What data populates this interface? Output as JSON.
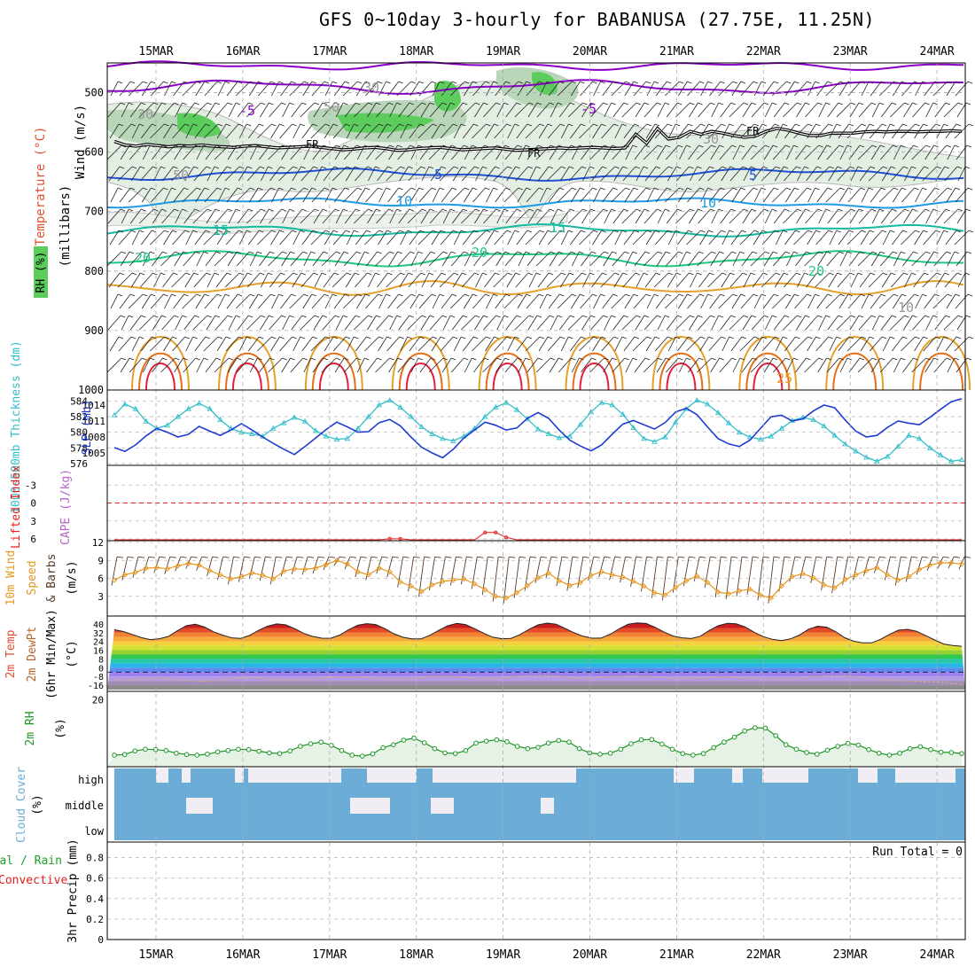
{
  "title": "GFS 0~10day 3-hourly for BABANUSA (27.75E, 11.25N)",
  "dates": [
    "15MAR",
    "16MAR",
    "17MAR",
    "18MAR",
    "19MAR",
    "20MAR",
    "21MAR",
    "22MAR",
    "23MAR",
    "24MAR"
  ],
  "colors": {
    "wind": "#ffffff",
    "temp_purple": "#8a00c8",
    "temp_blue": "#1e50d8",
    "temp_lightblue": "#1e9be6",
    "temp_teal": "#14b9a0",
    "temp_green": "#1ec882",
    "temp_orange": "#e6a028",
    "temp_darkorange": "#e66e14",
    "temp_red": "#e61e3c",
    "freezing": "#000000",
    "slp": "#1e3cd2",
    "thickness": "#32beca",
    "wind10m": "#e6961e",
    "barbs": "#5a3c28",
    "rh2m": "#1e9628",
    "cloud": "#6badd6",
    "cloud_bg": "#f0eef4",
    "precip_total": "#1ea028",
    "precip_conv": "#e61e1e",
    "lifted": "#e61e1e",
    "cape": "#b464c8"
  },
  "chart_data": [
    {
      "type": "line",
      "panel": "upper-air cross section",
      "ylabel_parts": [
        "Wind (m/s)",
        "Temperature (°C)",
        "RH (%)",
        "(millibars)"
      ],
      "yticks": [
        500,
        600,
        700,
        800,
        900,
        1000
      ],
      "ylim": [
        1000,
        450
      ],
      "y_scale": "linear",
      "contour_labels": [
        "-5",
        "-5",
        "FR",
        "FR",
        "FR",
        "5",
        "5",
        "10",
        "10",
        "15",
        "15",
        "20",
        "20",
        "20",
        "10",
        "25",
        "30",
        "30",
        "30",
        "50",
        "50"
      ],
      "freezing_level_mb": [
        582,
        588,
        590,
        587,
        589,
        591,
        589,
        590,
        588,
        590,
        591,
        592,
        590,
        589,
        591,
        593,
        592,
        591,
        590,
        592,
        594,
        596,
        595,
        593,
        592,
        594,
        597,
        596,
        594,
        593,
        592,
        594,
        596,
        595,
        594,
        593,
        595,
        597,
        596,
        595,
        594,
        593,
        594,
        593,
        592,
        593,
        594,
        593,
        570,
        585,
        560,
        578,
        575,
        565,
        570,
        565,
        568,
        572,
        575,
        573,
        565,
        560,
        563,
        568,
        572,
        572,
        568,
        568,
        568,
        566,
        565,
        566,
        565,
        565,
        566,
        565,
        565,
        564,
        565
      ]
    },
    {
      "type": "line",
      "panel": "thickness and sea level pressure",
      "ylabel_left": "1000~500mb Thickness (dm)",
      "ylabel_right": "SLP (mb)",
      "left_ticks": [
        576,
        578,
        580,
        582,
        584
      ],
      "right_ticks": [
        1005,
        1008,
        1011,
        1014
      ],
      "series": [
        {
          "name": "1000~500mb Thickness",
          "units": "dm",
          "values": [
            582.2,
            583.6,
            583.0,
            581.4,
            580.5,
            580.9,
            582.0,
            583.0,
            583.7,
            583.0,
            581.6,
            580.5,
            580.0,
            579.8,
            579.5,
            580.5,
            581.2,
            581.9,
            581.4,
            580.2,
            579.5,
            579.1,
            579.2,
            580.5,
            582.0,
            583.5,
            584.1,
            583.2,
            582.0,
            580.7,
            579.8,
            579.2,
            578.9,
            579.5,
            580.5,
            582.0,
            583.2,
            583.8,
            582.9,
            581.7,
            580.4,
            579.8,
            579.3,
            579.5,
            581.0,
            582.6,
            583.8,
            583.5,
            582.3,
            580.6,
            579.2,
            578.8,
            579.4,
            581.3,
            583.0,
            584.1,
            583.6,
            582.5,
            581.2,
            580.0,
            579.4,
            579.1,
            579.5,
            580.5,
            581.5,
            581.9,
            581.6,
            580.8,
            579.6,
            578.5,
            577.6,
            576.8,
            576.3,
            576.9,
            578.2,
            579.6,
            579.2,
            578.0,
            577.1,
            576.3,
            576.5
          ]
        },
        {
          "name": "SLP",
          "units": "mb",
          "values": [
            1006.0,
            1005.3,
            1006.5,
            1008.2,
            1009.6,
            1008.9,
            1008.0,
            1008.5,
            1010.0,
            1009.1,
            1008.3,
            1009.3,
            1010.5,
            1009.3,
            1008.0,
            1006.8,
            1005.7,
            1004.7,
            1006.2,
            1007.8,
            1009.4,
            1010.8,
            1009.9,
            1008.9,
            1009.0,
            1010.7,
            1011.3,
            1010.1,
            1008.0,
            1006.1,
            1005.0,
            1004.1,
            1005.7,
            1007.8,
            1009.3,
            1010.8,
            1010.2,
            1009.3,
            1009.7,
            1011.5,
            1012.6,
            1011.5,
            1009.3,
            1007.4,
            1006.3,
            1005.4,
            1006.5,
            1008.5,
            1010.4,
            1011.1,
            1010.3,
            1009.5,
            1010.7,
            1012.7,
            1013.4,
            1012.2,
            1009.9,
            1007.7,
            1006.7,
            1006.2,
            1007.4,
            1009.6,
            1011.8,
            1012.1,
            1011.0,
            1011.4,
            1012.9,
            1014.0,
            1013.5,
            1011.2,
            1009.1,
            1008.0,
            1008.3,
            1009.8,
            1011.0,
            1010.6,
            1010.3,
            1011.7,
            1013.2,
            1014.6,
            1015.2
          ]
        }
      ]
    },
    {
      "type": "line",
      "panel": "stability",
      "ylabel_parts": [
        "Lifted Index",
        "CAPE (J/kg)"
      ],
      "yticks": [
        -3,
        0,
        3,
        6
      ],
      "ylim": [
        6,
        -6
      ],
      "zero_line": true,
      "series": [
        {
          "name": "CAPE",
          "units": "J/kg",
          "values": [
            0,
            0,
            0,
            0,
            0,
            0,
            0,
            0,
            0,
            0,
            0,
            0,
            0,
            0,
            0,
            0,
            0,
            0,
            0,
            0,
            0,
            0,
            0,
            0,
            0,
            0,
            2,
            2,
            0,
            0,
            0,
            0,
            0,
            0,
            0,
            15,
            15,
            5,
            0,
            0,
            0,
            0,
            0,
            0,
            0,
            0,
            0,
            0,
            0,
            0,
            0,
            0,
            0,
            0,
            0,
            0,
            0,
            0,
            0,
            0,
            0,
            0,
            0,
            0,
            0,
            0,
            0,
            0,
            0,
            0,
            0,
            0,
            0,
            0,
            0,
            0,
            0,
            0,
            0,
            0,
            0
          ]
        }
      ]
    },
    {
      "type": "line",
      "panel": "10m wind",
      "ylabel_parts": [
        "10m Wind",
        "Speed",
        "& Barbs",
        "(m/s)"
      ],
      "yticks": [
        3,
        6,
        9,
        12
      ],
      "ylim": [
        0,
        12
      ],
      "series": [
        {
          "name": "10m Wind Speed",
          "units": "m/s",
          "values": [
            5.7,
            6.6,
            7.0,
            7.7,
            7.8,
            7.6,
            8.1,
            8.5,
            8.2,
            7.3,
            6.6,
            5.9,
            6.3,
            6.9,
            6.5,
            5.9,
            7.2,
            7.6,
            7.5,
            7.7,
            8.3,
            9.0,
            8.4,
            7.1,
            6.6,
            7.7,
            7.1,
            5.4,
            4.7,
            3.8,
            4.9,
            5.5,
            5.7,
            5.9,
            5.1,
            4.1,
            3.0,
            2.7,
            3.6,
            4.8,
            6.1,
            6.9,
            5.6,
            4.8,
            5.3,
            6.5,
            7.1,
            6.6,
            6.2,
            5.5,
            4.7,
            3.6,
            3.2,
            4.5,
            5.6,
            6.4,
            5.3,
            3.7,
            3.4,
            3.9,
            4.2,
            3.2,
            2.7,
            4.7,
            6.3,
            6.8,
            6.1,
            4.9,
            4.4,
            5.8,
            6.6,
            7.3,
            7.8,
            6.6,
            5.7,
            6.3,
            7.5,
            8.2,
            8.6,
            8.6,
            8.4
          ]
        }
      ]
    },
    {
      "type": "area",
      "panel": "2m temperature",
      "ylabel_parts": [
        "2m Temp",
        "2m DewPt",
        "(6hr Min/Max)",
        "(°C)"
      ],
      "yticks": [
        40,
        32,
        24,
        16,
        8,
        0,
        -8,
        -16
      ],
      "ylim": [
        -20,
        44
      ],
      "series": [
        {
          "name": "2m Temp",
          "units": "°C",
          "values": [
            34.8,
            33.1,
            30.4,
            27.5,
            25.7,
            26.5,
            28.6,
            33.8,
            38.5,
            39.7,
            37.3,
            32.8,
            29.8,
            27.3,
            26.8,
            29.5,
            34.1,
            37.9,
            40.0,
            39.2,
            35.7,
            31.4,
            28.6,
            27.0,
            26.9,
            29.8,
            34.8,
            38.8,
            40.3,
            39.5,
            35.7,
            31.0,
            27.9,
            26.3,
            26.3,
            29.6,
            34.2,
            38.3,
            40.6,
            39.4,
            35.5,
            31.4,
            27.9,
            26.5,
            26.8,
            30.3,
            35.0,
            39.1,
            40.8,
            39.8,
            35.9,
            31.9,
            28.8,
            27.0,
            27.1,
            30.6,
            35.5,
            39.8,
            41.0,
            40.4,
            36.9,
            32.5,
            28.9,
            27.3,
            26.7,
            28.8,
            34.0,
            38.4,
            40.6,
            40.1,
            37.2,
            32.3,
            28.4,
            25.9,
            24.7,
            26.3,
            29.8,
            35.2,
            37.9,
            37.1,
            33.0,
            27.5,
            24.2,
            22.7,
            22.7,
            25.9,
            30.5,
            34.4,
            35.1,
            33.3,
            29.3,
            25.4,
            21.6,
            20.3,
            19.6
          ]
        },
        {
          "name": "2m DewPt",
          "units": "°C",
          "values": [
            -10.6,
            -11.7,
            -11.0,
            -10.0,
            -9.8,
            -9.9,
            -11.0,
            -11.7,
            -12.3,
            -12.3,
            -11.5,
            -10.0,
            -9.3,
            -9.0,
            -9.2,
            -10.5,
            -11.3,
            -11.1,
            -10.9,
            -10.4,
            -9.3,
            -8.6,
            -8.4,
            -8.4,
            -9.0,
            -9.8,
            -10.3,
            -10.6,
            -10.2,
            -9.3,
            -8.3,
            -7.9,
            -8.1,
            -8.5,
            -9.2,
            -9.9,
            -10.1,
            -9.3,
            -8.4,
            -7.7,
            -7.3,
            -7.3,
            -7.6,
            -8.5,
            -9.3,
            -9.6,
            -9.2,
            -8.5,
            -7.9,
            -7.8,
            -7.7,
            -8.1,
            -8.8,
            -9.3,
            -9.8,
            -9.5,
            -9.2,
            -8.8,
            -8.4,
            -8.6,
            -9.2,
            -9.6,
            -10.1,
            -10.4,
            -10.5,
            -10.3,
            -9.3,
            -8.0,
            -7.6,
            -7.5,
            -7.5,
            -8.7,
            -9.8,
            -10.7,
            -11.4,
            -11.7,
            -12.1,
            -12.6,
            -13.0,
            -13.4,
            -14.2,
            -15.2
          ]
        }
      ]
    },
    {
      "type": "line",
      "panel": "2m relative humidity",
      "ylabel_parts": [
        "2m RH",
        "(%)"
      ],
      "yticks": [
        20
      ],
      "ylim": [
        0,
        22
      ],
      "series": [
        {
          "name": "2m RH",
          "units": "%",
          "values": [
            3.0,
            3.2,
            4.3,
            4.8,
            4.7,
            4.4,
            3.6,
            3.2,
            3.0,
            3.3,
            4.0,
            4.4,
            4.8,
            4.7,
            4.2,
            3.7,
            3.5,
            4.3,
            5.7,
            6.5,
            7.0,
            6.0,
            4.4,
            3.0,
            2.7,
            3.4,
            5.3,
            6.2,
            7.6,
            8.2,
            6.8,
            5.0,
            3.7,
            3.5,
            4.4,
            6.7,
            7.3,
            7.7,
            7.1,
            5.7,
            5.0,
            5.4,
            6.7,
            7.5,
            7.0,
            5.0,
            3.7,
            3.3,
            3.6,
            4.8,
            6.5,
            7.7,
            7.8,
            6.4,
            4.8,
            3.5,
            3.0,
            3.5,
            5.3,
            7.0,
            8.5,
            10.4,
            11.4,
            11.3,
            9.0,
            6.2,
            4.8,
            3.8,
            3.3,
            4.5,
            5.7,
            6.6,
            6.1,
            4.7,
            3.6,
            3.0,
            3.6,
            5.0,
            5.6,
            4.7,
            3.9,
            3.8,
            3.5
          ]
        }
      ]
    },
    {
      "type": "bar",
      "panel": "cloud cover",
      "ylabel_parts": [
        "Cloud Cover",
        "(%)"
      ],
      "category_labels": [
        "high",
        "middle",
        "low"
      ]
    },
    {
      "type": "bar",
      "panel": "precipitation",
      "ylabel_parts": [
        "Total / Rain",
        "Convective",
        "3hr Precip (mm)"
      ],
      "yticks": [
        0,
        0.2,
        0.4,
        0.6,
        0.8
      ],
      "ylim": [
        0,
        0.9
      ],
      "annotation": "Run Total = 0",
      "series": [
        {
          "name": "Total / Rain",
          "units": "mm",
          "values": []
        },
        {
          "name": "Convective",
          "units": "mm",
          "values": []
        }
      ]
    }
  ]
}
